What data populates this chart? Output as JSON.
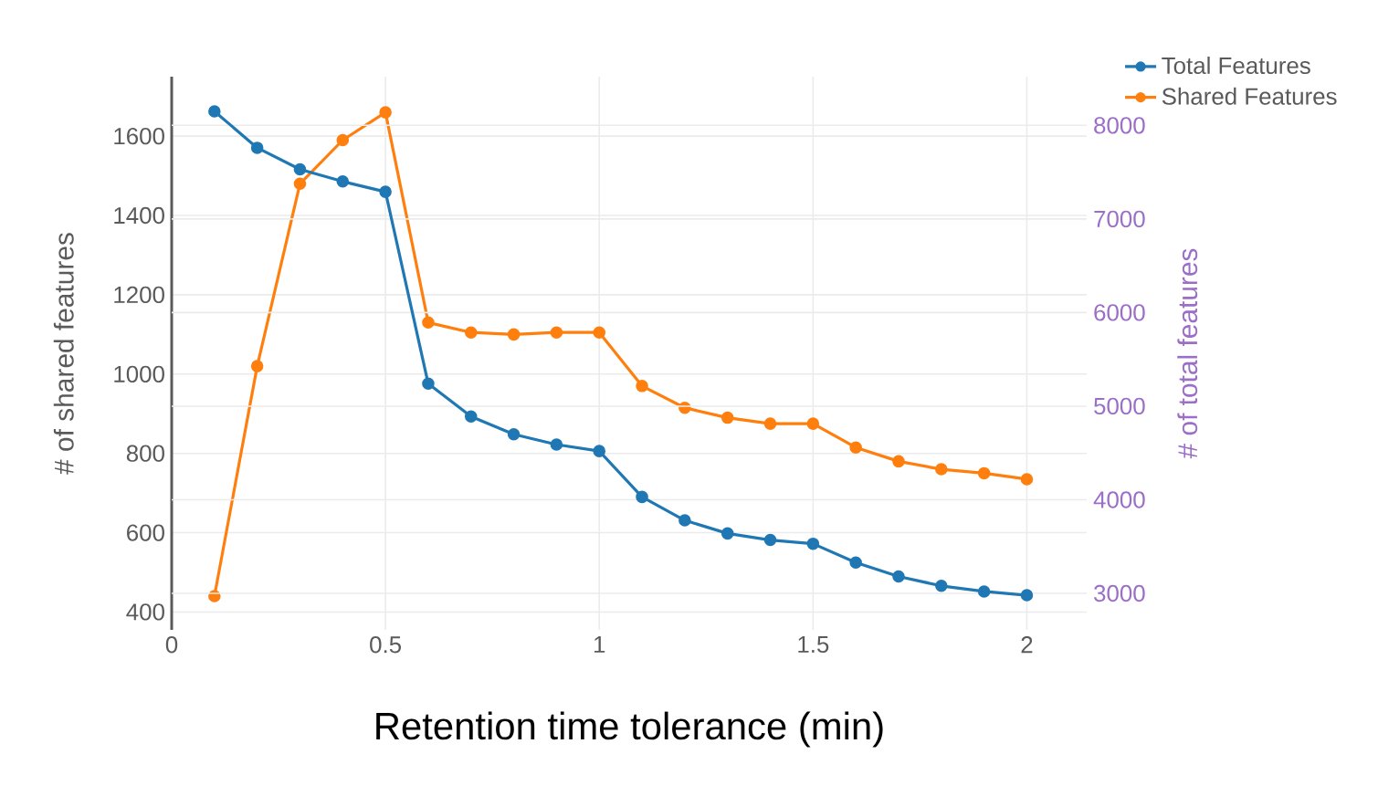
{
  "chart_data": {
    "type": "line",
    "xlabel": "Retention time tolerance (min)",
    "ylabel": "# of shared features",
    "y2label": "# of total features",
    "x": [
      0.1,
      0.2,
      0.3,
      0.4,
      0.5,
      0.6,
      0.7,
      0.8,
      0.9,
      1.0,
      1.1,
      1.2,
      1.3,
      1.4,
      1.5,
      1.6,
      1.7,
      1.8,
      1.9,
      2.0
    ],
    "series": [
      {
        "name": "Total Features",
        "color": "#1f77b4",
        "axis": "y2",
        "values": [
          8150,
          7760,
          7530,
          7400,
          7290,
          5240,
          4890,
          4700,
          4590,
          4520,
          4030,
          3780,
          3640,
          3570,
          3530,
          3330,
          3180,
          3080,
          3020,
          2980
        ]
      },
      {
        "name": "Shared Features",
        "color": "#ff7f0e",
        "axis": "y",
        "values": [
          440,
          1020,
          1480,
          1590,
          1660,
          1130,
          1105,
          1100,
          1105,
          1105,
          970,
          915,
          890,
          875,
          875,
          815,
          780,
          760,
          750,
          735
        ]
      }
    ],
    "xlim": [
      0,
      2.14
    ],
    "xticks": [
      0,
      0.5,
      1,
      1.5,
      2
    ],
    "ylim": [
      355,
      1750
    ],
    "yticks": [
      400,
      600,
      800,
      1000,
      1200,
      1400,
      1600
    ],
    "y2lim": [
      2610,
      8520
    ],
    "y2ticks": [
      3000,
      4000,
      5000,
      6000,
      7000,
      8000
    ],
    "grid": true,
    "legend": "top right",
    "marker": "circle",
    "line_style": "solid"
  }
}
